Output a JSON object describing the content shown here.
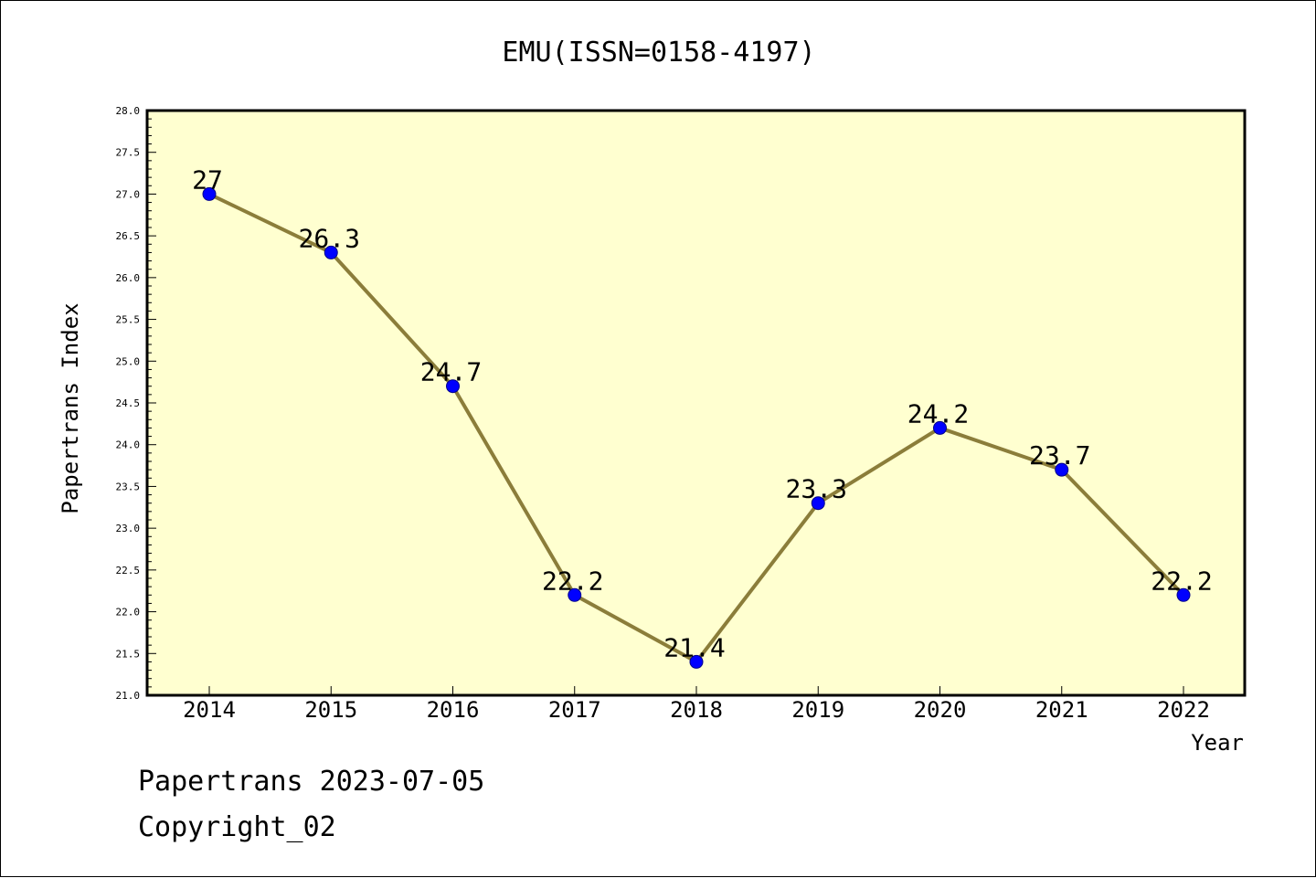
{
  "chart_data": {
    "type": "line",
    "title": "EMU(ISSN=0158-4197)",
    "xlabel": "Year",
    "ylabel": "Papertrans Index",
    "categories": [
      "2014",
      "2015",
      "2016",
      "2017",
      "2018",
      "2019",
      "2020",
      "2021",
      "2022"
    ],
    "series": [
      {
        "values": [
          27,
          26.3,
          24.7,
          22.2,
          21.4,
          23.3,
          24.2,
          23.7,
          22.2
        ],
        "labels": [
          "27",
          "26.3",
          "24.7",
          "22.2",
          "21.4",
          "23.3",
          "24.2",
          "23.7",
          "22.2"
        ]
      }
    ],
    "ylim": [
      21.0,
      28.0
    ],
    "ytick_labels": [
      "21.0",
      "21.5",
      "22.0",
      "22.5",
      "23.0",
      "23.5",
      "24.0",
      "24.5",
      "25.0",
      "25.5",
      "26.0",
      "26.5",
      "27.0",
      "27.5",
      "28.0"
    ],
    "grid": false,
    "line_color": "#8b7d3a",
    "marker_color": "#0000ff",
    "plot_background": "#ffffd0"
  },
  "footer": {
    "line1": "Papertrans 2023-07-05",
    "line2": "Copyright_02"
  }
}
